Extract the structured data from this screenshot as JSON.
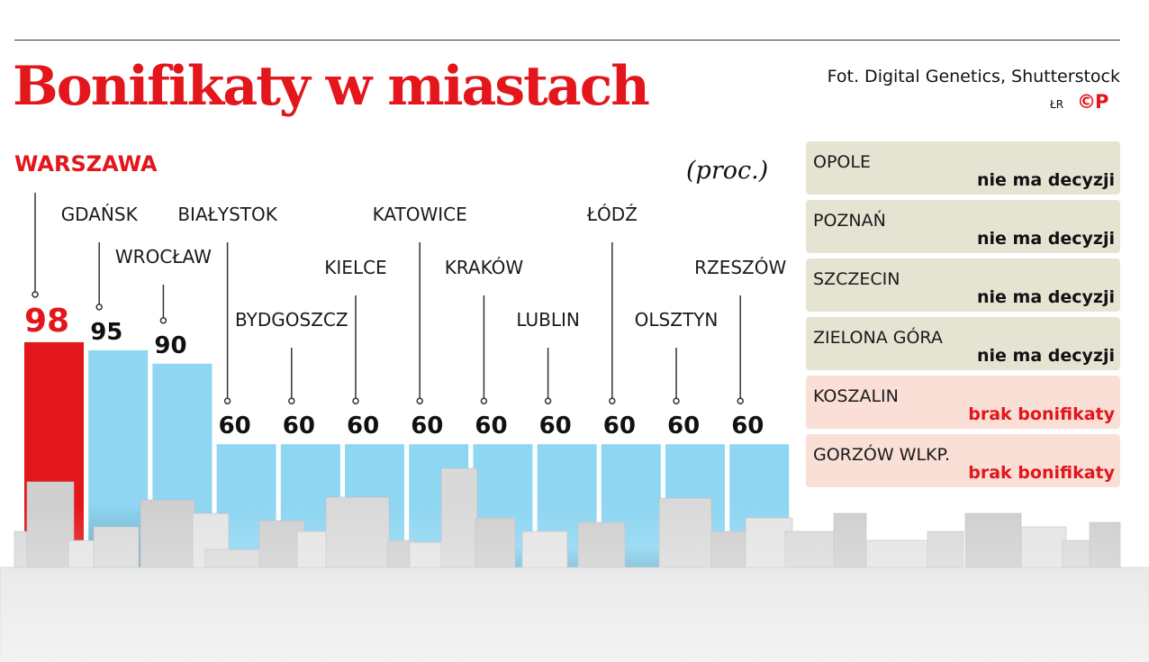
{
  "header": {
    "title": "Bonifikaty w miastach",
    "credit": "Fot. Digital Genetics, Shutterstock",
    "initials": "ŁR",
    "cp_mark": "©P"
  },
  "chart_data": {
    "type": "bar",
    "unit": "(proc.)",
    "categories": [
      "WARSZAWA",
      "GDAŃSK",
      "WROCŁAW",
      "BIAŁYSTOK",
      "BYDGOSZCZ",
      "KIELCE",
      "KATOWICE",
      "KRAKÓW",
      "LUBLIN",
      "ŁÓDŹ",
      "OLSZTYN",
      "RZESZÓW"
    ],
    "values": [
      98,
      95,
      90,
      60,
      60,
      60,
      60,
      60,
      60,
      60,
      60,
      60
    ],
    "highlight": "WARSZAWA",
    "colors": {
      "highlight": "#e2161b",
      "bar": "#8ed6f2",
      "bar_edge": "#6bc6ea"
    }
  },
  "side_list": [
    {
      "city": "OPOLE",
      "status": "nie ma decyzji",
      "kind": "gray"
    },
    {
      "city": "POZNAŃ",
      "status": "nie ma decyzji",
      "kind": "gray"
    },
    {
      "city": "SZCZECIN",
      "status": "nie ma decyzji",
      "kind": "gray"
    },
    {
      "city": "ZIELONA GÓRA",
      "status": "nie ma decyzji",
      "kind": "gray"
    },
    {
      "city": "KOSZALIN",
      "status": "brak bonifikaty",
      "kind": "pink"
    },
    {
      "city": "GORZÓW WLKP.",
      "status": "brak bonifikaty",
      "kind": "pink"
    }
  ]
}
